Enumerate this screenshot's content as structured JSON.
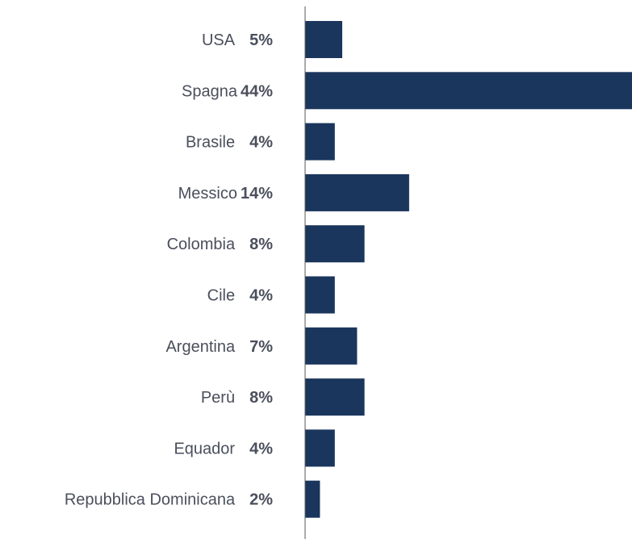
{
  "chart_data": {
    "type": "bar",
    "orientation": "horizontal",
    "categories": [
      "USA",
      "Spagna",
      "Brasile",
      "Messico",
      "Colombia",
      "Cile",
      "Argentina",
      "Perù",
      "Equador",
      "Repubblica Dominicana"
    ],
    "values": [
      5,
      44,
      4,
      14,
      8,
      4,
      7,
      8,
      4,
      2
    ],
    "value_labels": [
      "5%",
      "44%",
      "4%",
      "14%",
      "8%",
      "4%",
      "7%",
      "8%",
      "4%",
      "2%"
    ],
    "title": "",
    "xlabel": "",
    "ylabel": "",
    "grid": false,
    "legend": "none",
    "bar_color": "#1b365d",
    "label_color": "#4a4f5c",
    "axis_color": "#555555"
  }
}
